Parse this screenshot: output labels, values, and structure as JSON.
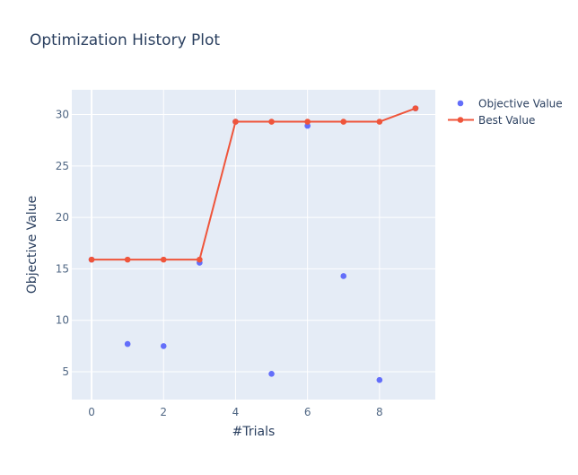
{
  "chart_data": {
    "type": "scatter",
    "title": "Optimization History Plot",
    "xlabel": "#Trials",
    "ylabel": "Objective Value",
    "xlim": [
      -0.55,
      9.55
    ],
    "ylim": [
      2.3,
      32.4
    ],
    "xticks": [
      0,
      2,
      4,
      6,
      8
    ],
    "yticks": [
      5,
      10,
      15,
      20,
      25,
      30
    ],
    "grid": true,
    "legend_position": "top-right",
    "series": [
      {
        "name": "Objective Value",
        "mode": "markers",
        "color": "#636efa",
        "x": [
          0,
          1,
          2,
          3,
          4,
          5,
          6,
          7,
          8,
          9
        ],
        "y": [
          15.9,
          7.7,
          7.5,
          15.6,
          29.3,
          4.8,
          28.9,
          14.3,
          4.2,
          30.6
        ]
      },
      {
        "name": "Best Value",
        "mode": "lines+markers",
        "color": "#ef553b",
        "x": [
          0,
          1,
          2,
          3,
          4,
          5,
          6,
          7,
          8,
          9
        ],
        "y": [
          15.9,
          15.9,
          15.9,
          15.9,
          29.3,
          29.3,
          29.3,
          29.3,
          29.3,
          30.6
        ]
      }
    ]
  },
  "colors": {
    "plot_background": "#e5ecf6",
    "grid": "#ffffff",
    "text": "#2a3f5f",
    "axis_text": "#506784"
  }
}
